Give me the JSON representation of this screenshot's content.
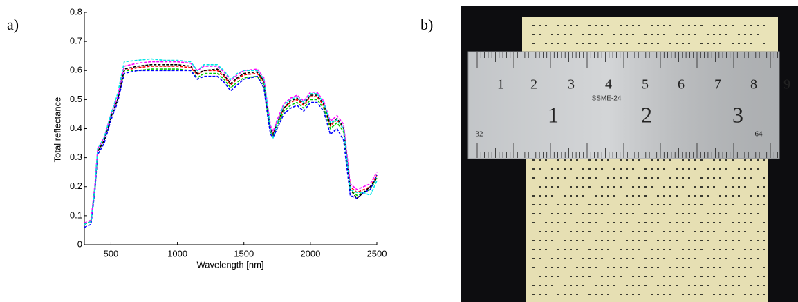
{
  "chart_data": {
    "type": "line",
    "panel_label": "a)",
    "xlabel": "Wavelength [nm]",
    "ylabel": "Total reflectance",
    "x": [
      300,
      350,
      380,
      400,
      450,
      500,
      550,
      600,
      700,
      800,
      900,
      1000,
      1100,
      1150,
      1200,
      1300,
      1350,
      1400,
      1450,
      1500,
      1600,
      1650,
      1680,
      1700,
      1720,
      1750,
      1800,
      1850,
      1900,
      1950,
      2000,
      2050,
      2100,
      2150,
      2200,
      2250,
      2300,
      2350,
      2400,
      2450,
      2500
    ],
    "series": [
      {
        "color": "#ff0000",
        "values": [
          0.07,
          0.08,
          0.2,
          0.32,
          0.36,
          0.44,
          0.5,
          0.6,
          0.61,
          0.615,
          0.615,
          0.615,
          0.61,
          0.585,
          0.6,
          0.6,
          0.58,
          0.55,
          0.57,
          0.585,
          0.59,
          0.56,
          0.46,
          0.4,
          0.38,
          0.42,
          0.47,
          0.49,
          0.5,
          0.48,
          0.51,
          0.51,
          0.48,
          0.41,
          0.43,
          0.4,
          0.2,
          0.18,
          0.19,
          0.2,
          0.24
        ]
      },
      {
        "color": "#00cc00",
        "values": [
          0.07,
          0.08,
          0.2,
          0.32,
          0.36,
          0.44,
          0.5,
          0.6,
          0.6,
          0.605,
          0.605,
          0.605,
          0.6,
          0.575,
          0.59,
          0.59,
          0.57,
          0.54,
          0.56,
          0.575,
          0.58,
          0.55,
          0.45,
          0.39,
          0.37,
          0.41,
          0.46,
          0.48,
          0.49,
          0.47,
          0.5,
          0.5,
          0.47,
          0.4,
          0.42,
          0.39,
          0.19,
          0.17,
          0.18,
          0.19,
          0.23
        ]
      },
      {
        "color": "#0000ff",
        "values": [
          0.06,
          0.07,
          0.19,
          0.31,
          0.35,
          0.43,
          0.49,
          0.59,
          0.6,
          0.6,
          0.6,
          0.6,
          0.6,
          0.57,
          0.58,
          0.58,
          0.56,
          0.53,
          0.55,
          0.57,
          0.58,
          0.54,
          0.44,
          0.38,
          0.37,
          0.4,
          0.45,
          0.47,
          0.48,
          0.46,
          0.49,
          0.49,
          0.46,
          0.38,
          0.4,
          0.36,
          0.17,
          0.16,
          0.18,
          0.19,
          0.24
        ]
      },
      {
        "color": "#000000",
        "values": [
          0.07,
          0.08,
          0.2,
          0.32,
          0.36,
          0.44,
          0.5,
          0.605,
          0.615,
          0.62,
          0.62,
          0.62,
          0.615,
          0.59,
          0.6,
          0.605,
          0.585,
          0.555,
          0.575,
          0.59,
          0.595,
          0.565,
          0.465,
          0.4,
          0.38,
          0.42,
          0.47,
          0.495,
          0.505,
          0.485,
          0.515,
          0.515,
          0.485,
          0.415,
          0.435,
          0.405,
          0.19,
          0.16,
          0.18,
          0.2,
          0.23
        ]
      },
      {
        "color": "#ff00ff",
        "values": [
          0.075,
          0.085,
          0.21,
          0.33,
          0.37,
          0.45,
          0.51,
          0.615,
          0.625,
          0.63,
          0.63,
          0.63,
          0.625,
          0.6,
          0.615,
          0.615,
          0.595,
          0.565,
          0.585,
          0.6,
          0.605,
          0.575,
          0.475,
          0.41,
          0.39,
          0.43,
          0.485,
          0.505,
          0.515,
          0.495,
          0.525,
          0.525,
          0.495,
          0.425,
          0.445,
          0.415,
          0.21,
          0.19,
          0.2,
          0.21,
          0.25
        ]
      },
      {
        "color": "#00e5e5",
        "values": [
          0.07,
          0.08,
          0.2,
          0.33,
          0.37,
          0.45,
          0.52,
          0.63,
          0.635,
          0.64,
          0.635,
          0.635,
          0.63,
          0.6,
          0.62,
          0.62,
          0.6,
          0.57,
          0.59,
          0.6,
          0.6,
          0.57,
          0.47,
          0.4,
          0.37,
          0.42,
          0.48,
          0.5,
          0.51,
          0.49,
          0.52,
          0.52,
          0.49,
          0.42,
          0.43,
          0.4,
          0.19,
          0.18,
          0.18,
          0.17,
          0.22
        ]
      }
    ],
    "xlim": [
      300,
      2500
    ],
    "xticks": [
      500,
      1000,
      1500,
      2000,
      2500
    ],
    "ylim": [
      0,
      0.8
    ],
    "yticks": [
      0,
      0.1,
      0.2,
      0.3,
      0.4,
      0.5,
      0.6,
      0.7,
      0.8
    ]
  },
  "photo": {
    "panel_label": "b)",
    "inch_labels": [
      "1",
      "2",
      "3",
      "4",
      "5",
      "6",
      "7",
      "8",
      "9"
    ],
    "model": "SSME-24",
    "large_labels": [
      "1",
      "2",
      "3"
    ],
    "small_labels": [
      "32",
      "64"
    ]
  }
}
